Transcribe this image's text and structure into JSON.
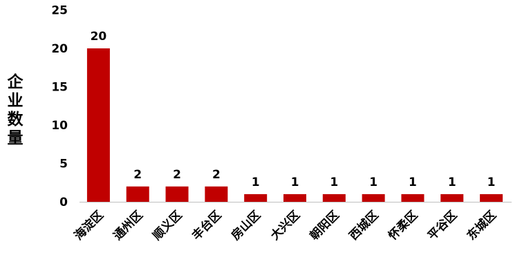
{
  "chart_data": {
    "type": "bar",
    "title": "",
    "xlabel": "",
    "ylabel": "企业数量",
    "ylim": [
      0,
      25
    ],
    "yticks": [
      0,
      5,
      10,
      15,
      20,
      25
    ],
    "grid": false,
    "categories": [
      "海淀区",
      "通州区",
      "顺义区",
      "丰台区",
      "房山区",
      "大兴区",
      "朝阳区",
      "西城区",
      "怀柔区",
      "平谷区",
      "东城区"
    ],
    "values": [
      20,
      2,
      2,
      2,
      1,
      1,
      1,
      1,
      1,
      1,
      1
    ],
    "data_labels": [
      "20",
      "2",
      "2",
      "2",
      "1",
      "1",
      "1",
      "1",
      "1",
      "1",
      "1"
    ],
    "bar_color": "#c00000",
    "axis_color": "#bfbfbf"
  }
}
